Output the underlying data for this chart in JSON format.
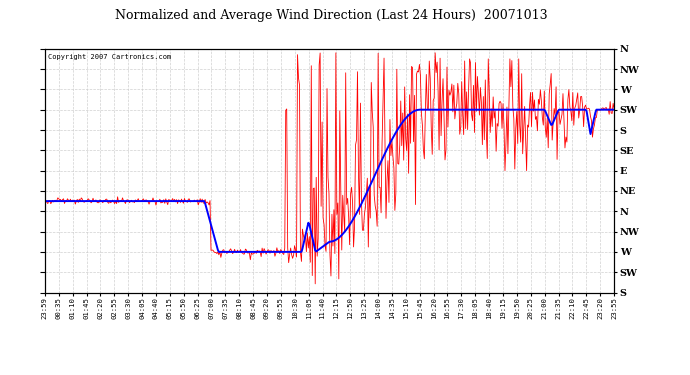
{
  "title": "Normalized and Average Wind Direction (Last 24 Hours)  20071013",
  "copyright": "Copyright 2007 Cartronics.com",
  "background_color": "#ffffff",
  "plot_bg_color": "#ffffff",
  "grid_color": "#cccccc",
  "red_color": "#ff0000",
  "blue_color": "#0000ff",
  "ytick_labels": [
    "N",
    "NW",
    "W",
    "SW",
    "S",
    "SE",
    "E",
    "NE",
    "N",
    "NW",
    "W",
    "SW",
    "S"
  ],
  "xtick_labels": [
    "23:59",
    "00:35",
    "01:10",
    "01:45",
    "02:20",
    "02:55",
    "03:30",
    "04:05",
    "04:40",
    "05:15",
    "05:50",
    "06:25",
    "07:00",
    "07:35",
    "08:10",
    "08:45",
    "09:20",
    "09:55",
    "10:30",
    "11:05",
    "11:40",
    "12:15",
    "12:50",
    "13:25",
    "14:00",
    "14:35",
    "15:10",
    "15:45",
    "16:20",
    "16:55",
    "17:30",
    "18:05",
    "18:40",
    "19:15",
    "19:50",
    "20:25",
    "21:00",
    "21:35",
    "22:10",
    "22:45",
    "23:20",
    "23:55"
  ],
  "num_points": 580,
  "y_min": 0,
  "y_max": 12
}
